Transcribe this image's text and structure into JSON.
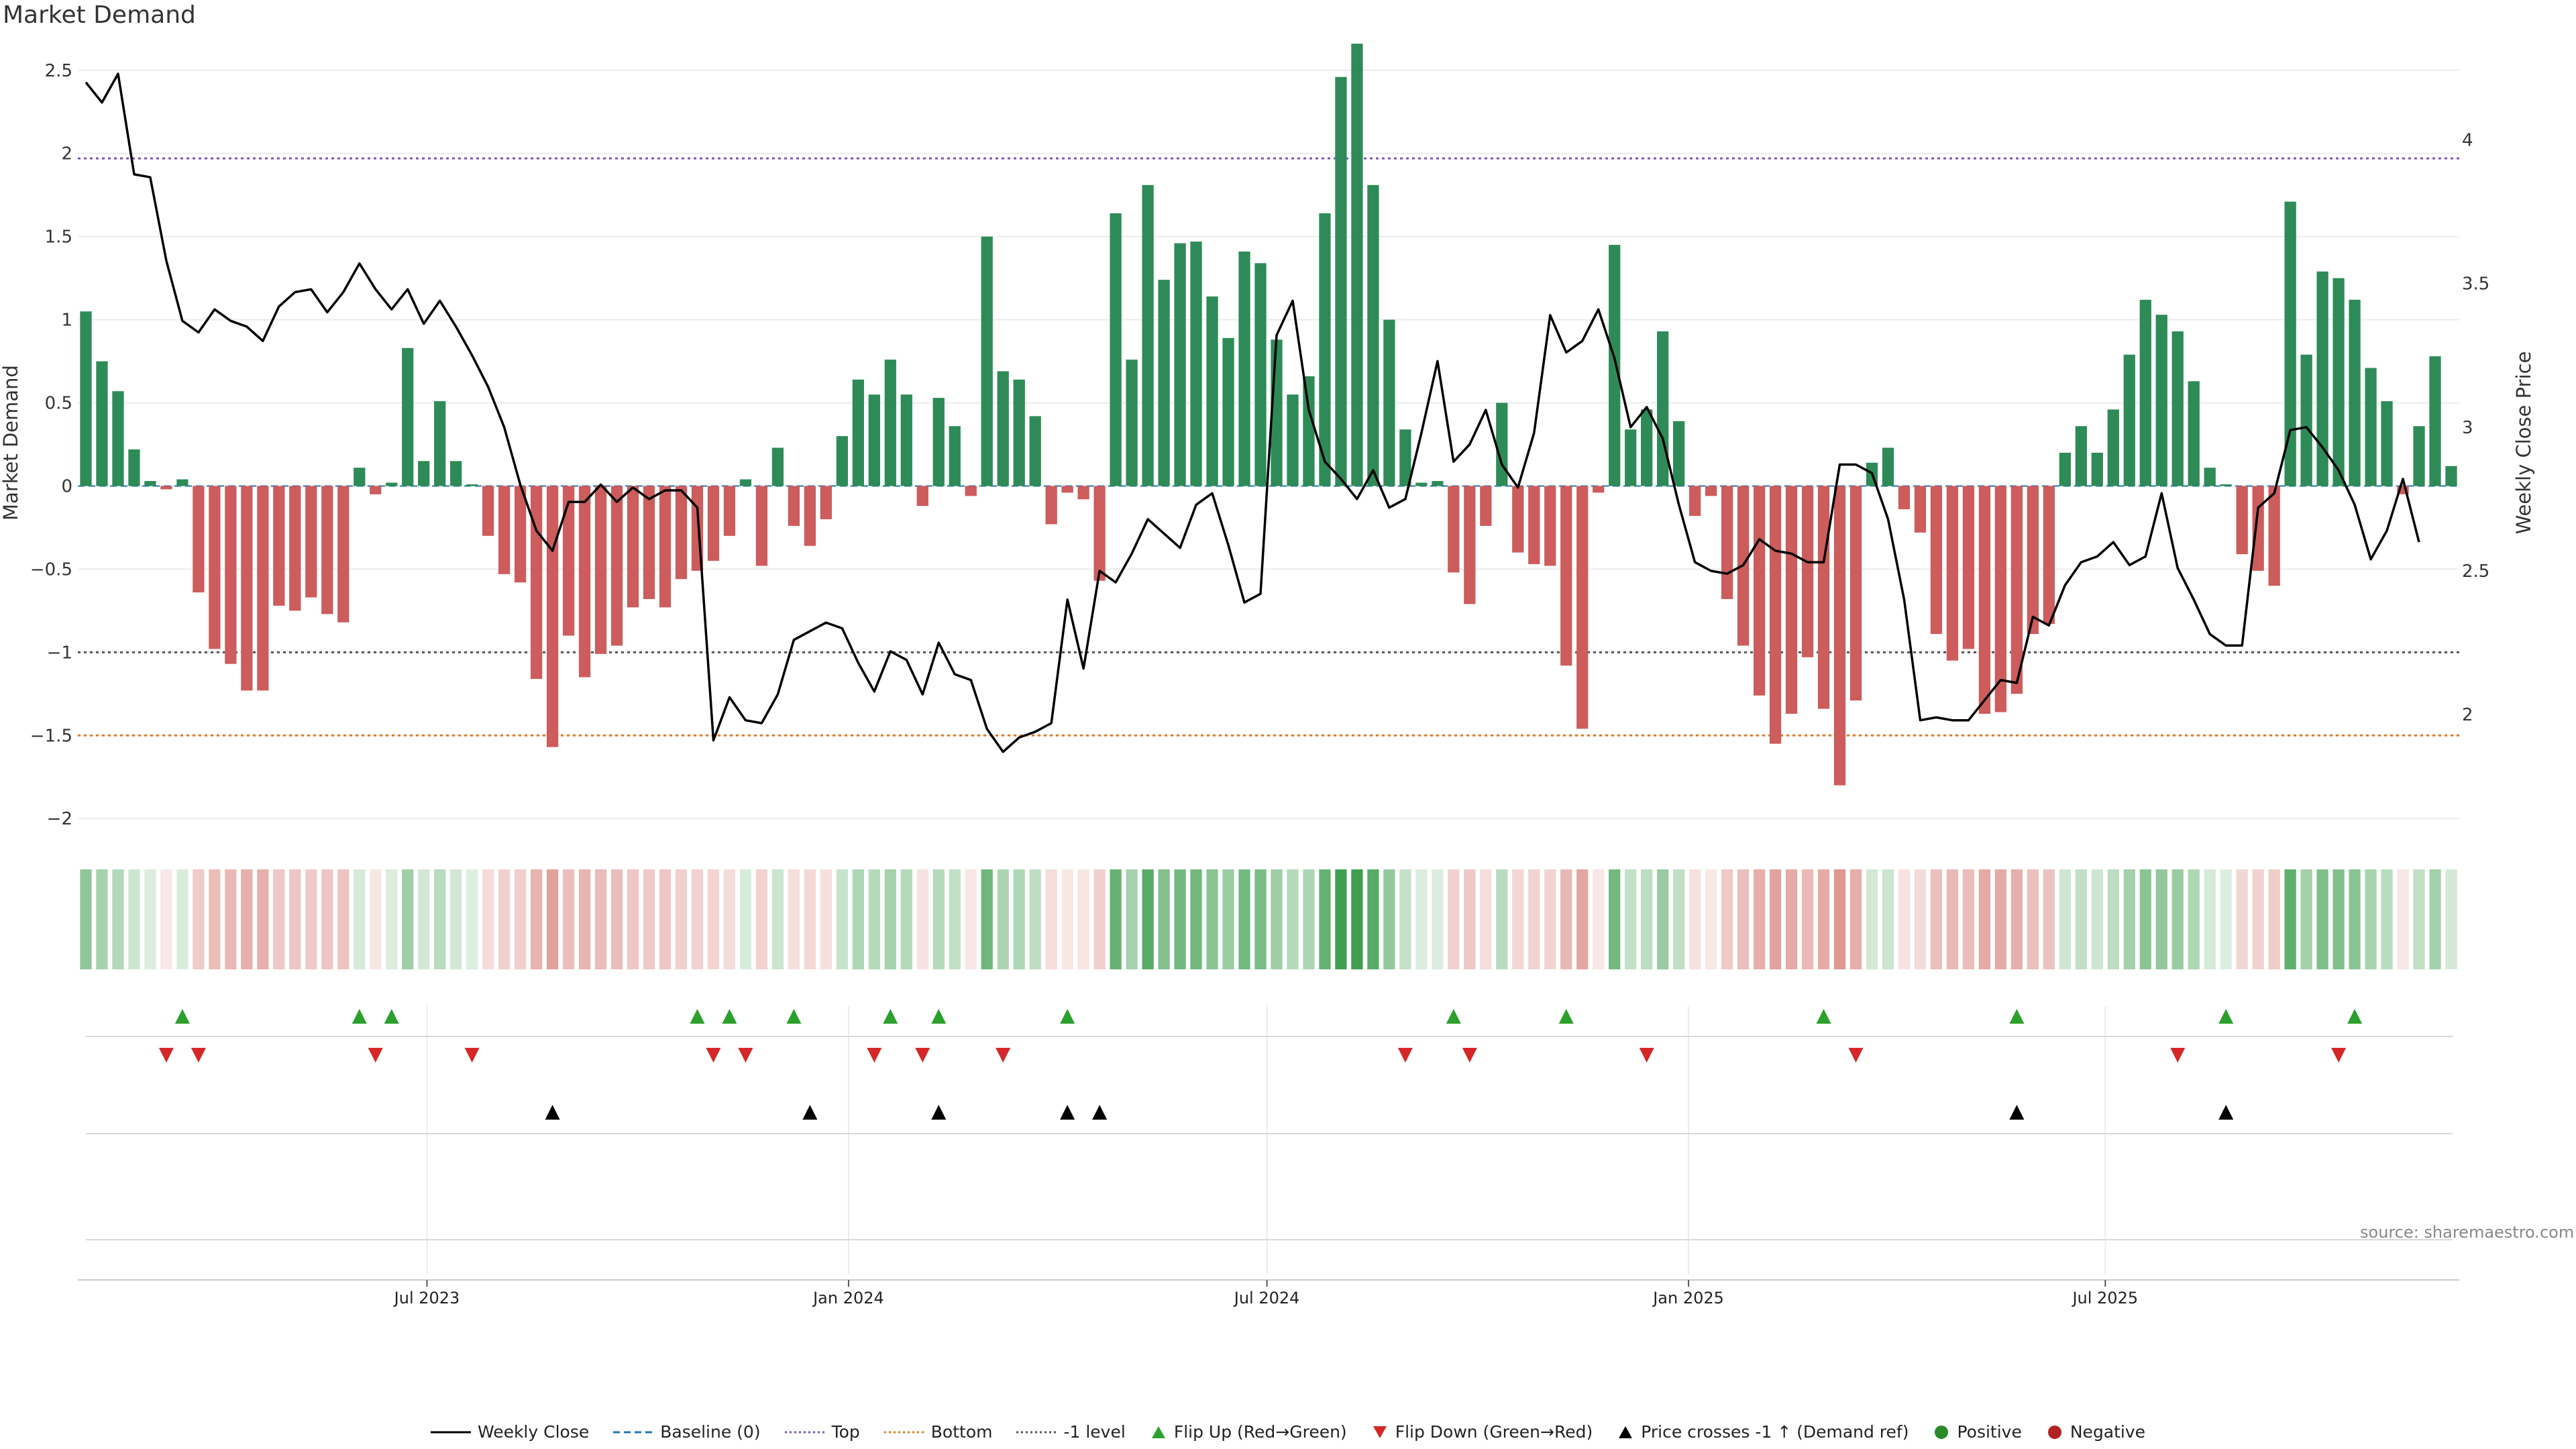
{
  "chart_data": {
    "type": "bar",
    "title": "Market Demand",
    "ylabel": "Market Demand",
    "y2label": "Weekly Close Price",
    "ylim": [
      -2.1,
      2.6
    ],
    "y2lim": [
      1.58,
      4.3
    ],
    "yticks": [
      "2.5",
      "2",
      "1.5",
      "1",
      "0.5",
      "0",
      "−0.5",
      "−1",
      "−1.5",
      "−2"
    ],
    "y2ticks": [
      "4",
      "3.5",
      "3",
      "2.5",
      "2"
    ],
    "xtick_labels": [
      "Jul 2023",
      "Jan 2024",
      "Jul 2024",
      "Jan 2025",
      "Jul 2025"
    ],
    "xtick_index": [
      21.2,
      47.4,
      73.4,
      99.6,
      125.5
    ],
    "reference_lines": [
      {
        "name": "Top",
        "value": 1.97,
        "color": "#7a55c0"
      },
      {
        "name": "-1 level",
        "value": -1.0,
        "color": "#555555"
      },
      {
        "name": "Bottom",
        "value": -1.5,
        "color": "#e07a20"
      }
    ],
    "demand": [
      1.05,
      0.75,
      0.57,
      0.22,
      0.03,
      -0.02,
      0.04,
      -0.64,
      -0.98,
      -1.07,
      -1.23,
      -1.23,
      -0.72,
      -0.75,
      -0.67,
      -0.77,
      -0.82,
      0.11,
      -0.05,
      0.02,
      0.83,
      0.15,
      0.51,
      0.15,
      0.01,
      -0.3,
      -0.53,
      -0.58,
      -1.16,
      -1.57,
      -0.9,
      -1.15,
      -1.01,
      -0.96,
      -0.73,
      -0.68,
      -0.73,
      -0.56,
      -0.51,
      -0.45,
      -0.3,
      0.04,
      -0.48,
      0.23,
      -0.24,
      -0.36,
      -0.2,
      0.3,
      0.64,
      0.55,
      0.76,
      0.55,
      -0.12,
      0.53,
      0.36,
      -0.06,
      1.5,
      0.69,
      0.64,
      0.42,
      -0.23,
      -0.04,
      -0.08,
      -0.57,
      1.64,
      0.76,
      1.81,
      1.24,
      1.46,
      1.47,
      1.14,
      0.89,
      1.41,
      1.34,
      0.88,
      0.55,
      0.66,
      1.64,
      2.46,
      2.66,
      1.81,
      1.0,
      0.34,
      0.02,
      0.03,
      -0.52,
      -0.71,
      -0.24,
      0.5,
      -0.4,
      -0.47,
      -0.48,
      -1.08,
      -1.46,
      -0.04,
      1.45,
      0.34,
      0.46,
      0.93,
      0.39,
      -0.18,
      -0.06,
      -0.68,
      -0.96,
      -1.26,
      -1.55,
      -1.37,
      -1.03,
      -1.34,
      -1.8,
      -1.29,
      0.14,
      0.23,
      -0.14,
      -0.28,
      -0.89,
      -1.05,
      -0.98,
      -1.37,
      -1.36,
      -1.25,
      -0.89,
      -0.83,
      0.2,
      0.36,
      0.2,
      0.46,
      0.79,
      1.12,
      1.03,
      0.93,
      0.63,
      0.11,
      0.01,
      -0.41,
      -0.51,
      -0.6,
      1.71,
      0.79,
      1.29,
      1.25,
      1.12,
      0.71,
      0.51,
      -0.05,
      0.36,
      0.78,
      0.12
    ],
    "weekly_close": [
      4.2,
      4.13,
      4.23,
      3.88,
      3.87,
      3.58,
      3.37,
      3.33,
      3.41,
      3.37,
      3.35,
      3.3,
      3.42,
      3.47,
      3.48,
      3.4,
      3.47,
      3.57,
      3.48,
      3.41,
      3.48,
      3.36,
      3.44,
      3.35,
      3.25,
      3.14,
      3.0,
      2.8,
      2.64,
      2.57,
      2.74,
      2.74,
      2.8,
      2.74,
      2.79,
      2.75,
      2.78,
      2.78,
      2.72,
      1.91,
      2.06,
      1.98,
      1.97,
      2.07,
      2.26,
      2.29,
      2.32,
      2.3,
      2.18,
      2.08,
      2.22,
      2.19,
      2.07,
      2.25,
      2.14,
      2.12,
      1.95,
      1.87,
      1.92,
      1.94,
      1.97,
      2.4,
      2.16,
      2.5,
      2.46,
      2.56,
      2.68,
      2.63,
      2.58,
      2.73,
      2.77,
      2.59,
      2.39,
      2.42,
      3.32,
      3.44,
      3.06,
      2.88,
      2.82,
      2.75,
      2.85,
      2.72,
      2.75,
      2.98,
      3.23,
      2.88,
      2.94,
      3.06,
      2.87,
      2.79,
      2.98,
      3.39,
      3.26,
      3.3,
      3.41,
      3.24,
      3.0,
      3.07,
      2.96,
      2.73,
      2.53,
      2.5,
      2.49,
      2.52,
      2.61,
      2.57,
      2.56,
      2.53,
      2.53,
      2.87,
      2.87,
      2.84,
      2.68,
      2.4,
      1.98,
      1.99,
      1.98,
      1.98,
      2.05,
      2.12,
      2.11,
      2.34,
      2.31,
      2.45,
      2.53,
      2.55,
      2.6,
      2.52,
      2.55,
      2.77,
      2.51,
      2.4,
      2.28,
      2.24,
      2.24,
      2.72,
      2.77,
      2.99,
      3.0,
      2.93,
      2.85,
      2.73,
      2.54,
      2.64,
      2.82,
      2.6
    ],
    "flip_up_weeks": [
      6,
      17,
      19,
      38,
      40,
      44,
      50,
      53,
      61,
      85,
      92,
      108,
      120,
      133,
      141
    ],
    "flip_down_weeks": [
      5,
      7,
      18,
      24,
      39,
      41,
      49,
      52,
      57,
      82,
      86,
      97,
      110,
      130,
      140
    ],
    "price_cross_weeks": [
      29,
      45,
      53,
      61,
      63,
      120,
      133
    ]
  },
  "source_text": "source: sharemaestro.com",
  "legend": [
    {
      "label": "Weekly Close",
      "kind": "line",
      "color": "#000000",
      "dash": ""
    },
    {
      "label": "Baseline (0)",
      "kind": "line",
      "color": "#1f77b4",
      "dash": "10,6"
    },
    {
      "label": "Top",
      "kind": "line",
      "color": "#7a55c0",
      "dash": "3,4"
    },
    {
      "label": "Bottom",
      "kind": "line",
      "color": "#e07a20",
      "dash": "3,4"
    },
    {
      "label": "-1 level",
      "kind": "line",
      "color": "#555555",
      "dash": "3,4"
    },
    {
      "label": "Flip Up (Red→Green)",
      "kind": "tri-up",
      "color": "#2ca02c"
    },
    {
      "label": "Flip Down (Green→Red)",
      "kind": "tri-down",
      "color": "#d62728"
    },
    {
      "label": "Price crosses -1 ↑ (Demand ref)",
      "kind": "tri-up",
      "color": "#000000"
    },
    {
      "label": "Positive",
      "kind": "dot",
      "color": "#2a8a2a"
    },
    {
      "label": "Negative",
      "kind": "dot",
      "color": "#b22222"
    }
  ],
  "colors": {
    "positive": "#2e8b57",
    "negative": "#cd5c5c",
    "heat_pos": "#3f9f4f",
    "heat_neg": "#d9867f"
  }
}
